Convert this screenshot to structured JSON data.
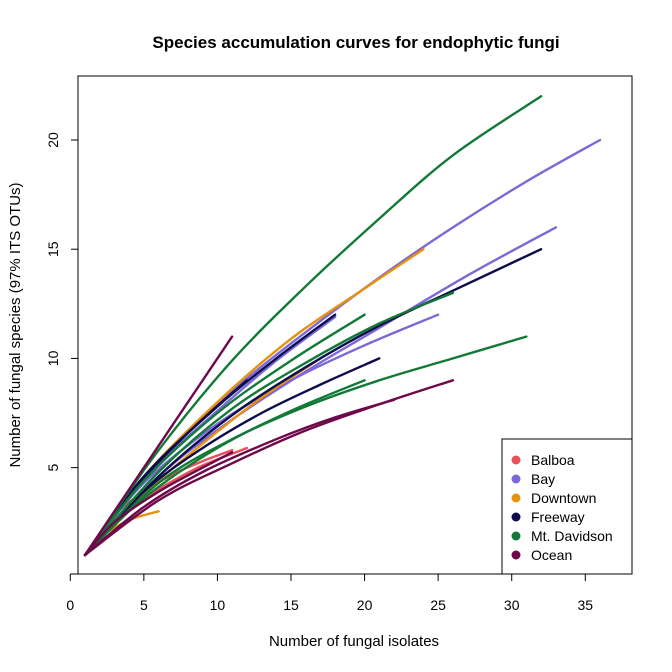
{
  "chart_data": {
    "type": "line",
    "title": "Species accumulation curves for endophytic fungi",
    "xlabel": "Number of fungal isolates",
    "ylabel": "Number of fungal species (97% ITS OTUs)",
    "xlim": [
      0,
      37
    ],
    "ylim": [
      0,
      23
    ],
    "xticks": [
      0,
      5,
      10,
      15,
      20,
      25,
      30,
      35
    ],
    "yticks": [
      5,
      10,
      15,
      20
    ],
    "grid": false,
    "legend": {
      "position": "bottom-right",
      "items": [
        {
          "name": "Balboa",
          "color": "#e8505b"
        },
        {
          "name": "Bay",
          "color": "#7b68d9"
        },
        {
          "name": "Downtown",
          "color": "#e8910c"
        },
        {
          "name": "Freeway",
          "color": "#0d0d4d"
        },
        {
          "name": "Mt. Davidson",
          "color": "#127a36"
        },
        {
          "name": "Ocean",
          "color": "#6e0a4a"
        }
      ]
    },
    "series": [
      {
        "group": "Balboa",
        "color": "#e8505b",
        "x": [
          1,
          3,
          5,
          7,
          9,
          11
        ],
        "y": [
          1,
          2.8,
          3.9,
          4.7,
          5.3,
          5.8
        ]
      },
      {
        "group": "Balboa",
        "color": "#e8505b",
        "x": [
          1,
          3,
          5,
          7,
          9,
          12
        ],
        "y": [
          1,
          2.6,
          3.6,
          4.4,
          5.1,
          5.9
        ]
      },
      {
        "group": "Bay",
        "color": "#7b68d9",
        "x": [
          1,
          6,
          11,
          16,
          21,
          26,
          31,
          36
        ],
        "y": [
          1,
          5.2,
          8.5,
          11.2,
          13.7,
          16.0,
          18.1,
          20.0
        ]
      },
      {
        "group": "Bay",
        "color": "#7b68d9",
        "x": [
          1,
          6,
          11,
          16,
          21,
          27,
          33
        ],
        "y": [
          1,
          4.6,
          7.2,
          9.4,
          11.4,
          13.8,
          16.0
        ]
      },
      {
        "group": "Bay",
        "color": "#7b68d9",
        "x": [
          1,
          5,
          10,
          15,
          20,
          25
        ],
        "y": [
          1,
          4.3,
          7.0,
          9.0,
          10.6,
          12.0
        ]
      },
      {
        "group": "Bay",
        "color": "#7b68d9",
        "x": [
          1,
          5,
          10,
          14,
          18
        ],
        "y": [
          1,
          4.5,
          7.6,
          9.9,
          11.9
        ]
      },
      {
        "group": "Downtown",
        "color": "#e8910c",
        "x": [
          1,
          5,
          10,
          15,
          20,
          24
        ],
        "y": [
          1,
          4.6,
          8.0,
          10.9,
          13.2,
          15.0
        ]
      },
      {
        "group": "Downtown",
        "color": "#e8910c",
        "x": [
          1,
          5,
          9,
          13,
          17
        ],
        "y": [
          1,
          3.8,
          6.1,
          8.2,
          10.0
        ]
      },
      {
        "group": "Downtown",
        "color": "#e8910c",
        "x": [
          1,
          2,
          4,
          6
        ],
        "y": [
          1,
          1.8,
          2.6,
          3.0
        ]
      },
      {
        "group": "Freeway",
        "color": "#0d0d4d",
        "x": [
          1,
          6,
          11,
          16,
          21,
          26,
          32
        ],
        "y": [
          1,
          4.6,
          7.4,
          9.6,
          11.5,
          13.1,
          15.0
        ]
      },
      {
        "group": "Freeway",
        "color": "#0d0d4d",
        "x": [
          1,
          5,
          9,
          13,
          17,
          21
        ],
        "y": [
          1,
          3.9,
          5.9,
          7.5,
          8.8,
          10.0
        ]
      },
      {
        "group": "Freeway",
        "color": "#0d0d4d",
        "x": [
          1,
          5,
          10,
          14,
          18
        ],
        "y": [
          1,
          4.6,
          7.8,
          10.0,
          12.0
        ]
      },
      {
        "group": "Freeway",
        "color": "#0d0d4d",
        "x": [
          1,
          4,
          8,
          12
        ],
        "y": [
          1,
          3.8,
          6.6,
          9.0
        ]
      },
      {
        "group": "Mt. Davidson",
        "color": "#127a36",
        "x": [
          1,
          6,
          11,
          16,
          21,
          26,
          32
        ],
        "y": [
          1,
          5.8,
          9.9,
          13.3,
          16.4,
          19.3,
          22.0
        ]
      },
      {
        "group": "Mt. Davidson",
        "color": "#127a36",
        "x": [
          1,
          6,
          11,
          16,
          21,
          26,
          31
        ],
        "y": [
          1,
          4.3,
          6.3,
          7.8,
          9.0,
          10.0,
          11.0
        ]
      },
      {
        "group": "Mt. Davidson",
        "color": "#127a36",
        "x": [
          1,
          6,
          11,
          16,
          21,
          26
        ],
        "y": [
          1,
          4.8,
          7.7,
          9.8,
          11.6,
          13.0
        ]
      },
      {
        "group": "Mt. Davidson",
        "color": "#127a36",
        "x": [
          1,
          5,
          10,
          15,
          20
        ],
        "y": [
          1,
          4.4,
          7.5,
          9.9,
          12.0
        ]
      },
      {
        "group": "Mt. Davidson",
        "color": "#127a36",
        "x": [
          1,
          5,
          10,
          15,
          20
        ],
        "y": [
          1,
          3.6,
          5.9,
          7.6,
          9.0
        ]
      },
      {
        "group": "Ocean",
        "color": "#6e0a4a",
        "x": [
          1,
          3,
          5,
          7,
          9,
          11
        ],
        "y": [
          1,
          3.0,
          5.0,
          7.0,
          9.0,
          11.0
        ]
      },
      {
        "group": "Ocean",
        "color": "#6e0a4a",
        "x": [
          1,
          6,
          11,
          16,
          21,
          26
        ],
        "y": [
          1,
          3.5,
          5.2,
          6.7,
          7.9,
          9.0
        ]
      },
      {
        "group": "Ocean",
        "color": "#6e0a4a",
        "x": [
          1,
          5,
          9,
          14,
          18,
          22
        ],
        "y": [
          1,
          3.2,
          4.8,
          6.3,
          7.3,
          8.1
        ]
      },
      {
        "group": "Ocean",
        "color": "#6e0a4a",
        "x": [
          1,
          3,
          6,
          9,
          11
        ],
        "y": [
          1,
          2.5,
          3.9,
          5.0,
          5.7
        ]
      }
    ]
  }
}
